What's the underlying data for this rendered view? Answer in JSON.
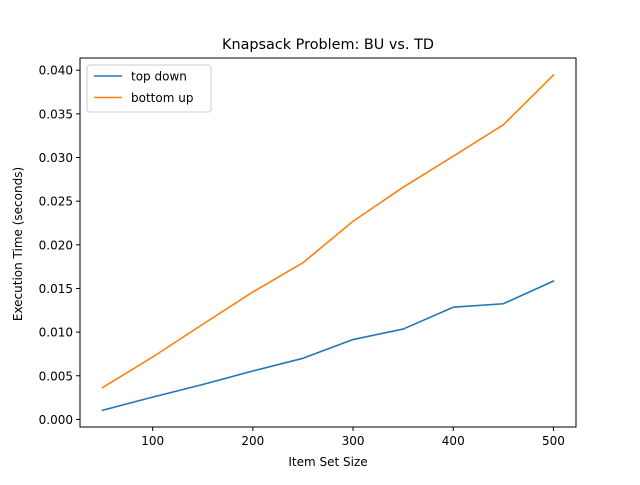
{
  "chart_data": {
    "type": "line",
    "title": "Knapsack Problem: BU vs. TD",
    "xlabel": "Item Set Size",
    "ylabel": "Execution Time (seconds)",
    "x": [
      50,
      100,
      150,
      200,
      250,
      300,
      350,
      400,
      450,
      500
    ],
    "series": [
      {
        "name": "top down",
        "color": "#1f77b4",
        "values": [
          0.00105,
          0.00255,
          0.004,
          0.00555,
          0.007,
          0.00915,
          0.01035,
          0.01285,
          0.01325,
          0.01585
        ]
      },
      {
        "name": "bottom up",
        "color": "#ff7f0e",
        "values": [
          0.00365,
          0.00715,
          0.0109,
          0.0146,
          0.01795,
          0.0227,
          0.0266,
          0.03015,
          0.03375,
          0.03945
        ]
      }
    ],
    "xlim": [
      27.5,
      522.5
    ],
    "ylim": [
      -0.00087,
      0.0414
    ],
    "xticks": [
      100,
      200,
      300,
      400,
      500
    ],
    "xtick_labels": [
      "100",
      "200",
      "300",
      "400",
      "500"
    ],
    "yticks": [
      0.0,
      0.005,
      0.01,
      0.015,
      0.02,
      0.025,
      0.03,
      0.035,
      0.04
    ],
    "ytick_labels": [
      "0.000",
      "0.005",
      "0.010",
      "0.015",
      "0.020",
      "0.025",
      "0.030",
      "0.035",
      "0.040"
    ],
    "grid": false,
    "legend_position": "upper-left"
  }
}
